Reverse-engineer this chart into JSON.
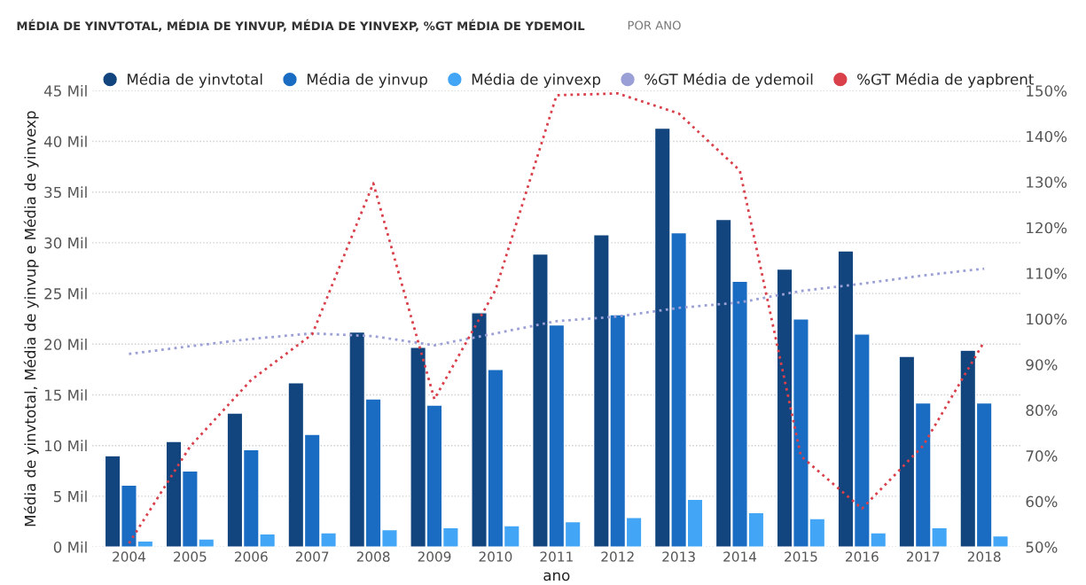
{
  "chart_data": {
    "type": "bar",
    "title": "MÉDIA DE YINVTOTAL, MÉDIA DE YINVUP, MÉDIA DE YINVEXP, %GT MÉDIA DE YDEMOIL",
    "subtitle": "POR ANO",
    "xlabel": "ano",
    "ylabel": "Média de yinvtotal, Média de yinvup e Média de yinvexp",
    "categories": [
      "2004",
      "2005",
      "2006",
      "2007",
      "2008",
      "2009",
      "2010",
      "2011",
      "2012",
      "2013",
      "2014",
      "2015",
      "2016",
      "2017",
      "2018"
    ],
    "series": [
      {
        "name": "Média de yinvtotal",
        "color": "#12457e",
        "values": [
          9.0,
          10.4,
          13.2,
          16.2,
          21.2,
          19.7,
          23.1,
          28.9,
          30.8,
          41.3,
          32.3,
          27.4,
          29.2,
          18.8,
          19.4
        ]
      },
      {
        "name": "Média de yinvup",
        "color": "#1a6cc2",
        "values": [
          6.1,
          7.5,
          9.6,
          11.1,
          14.6,
          14.0,
          17.5,
          21.9,
          22.9,
          31.0,
          26.2,
          22.5,
          21.0,
          14.2,
          14.2
        ]
      },
      {
        "name": "Média de yinvexp",
        "color": "#42a5f5",
        "values": [
          0.6,
          0.8,
          1.3,
          1.4,
          1.7,
          1.9,
          2.1,
          2.5,
          2.9,
          4.7,
          3.4,
          2.8,
          1.4,
          1.9,
          1.1
        ]
      },
      {
        "name": "%GT Média de ydemoil",
        "type": "line",
        "axis": "y2",
        "color": "#9a9fd6",
        "line_style": "dotted",
        "values": [
          92.3,
          94,
          95.6,
          96.8,
          96.2,
          94.2,
          96.8,
          99.5,
          100.5,
          102.4,
          103.6,
          106.1,
          107.7,
          109.5,
          111
        ]
      },
      {
        "name": "%GT Média de yapbrent",
        "type": "line",
        "axis": "y2",
        "color": "#d9404a",
        "line_style": "dotted",
        "values": [
          50.8,
          72,
          86.6,
          96.6,
          129.7,
          82.4,
          106.3,
          149,
          149.4,
          145,
          132.5,
          69.9,
          58.4,
          72.2,
          95
        ]
      }
    ],
    "ylim": [
      0,
      45
    ],
    "yticks": [
      {
        "value": 0,
        "label": "0 Mil"
      },
      {
        "value": 5,
        "label": "5 Mil"
      },
      {
        "value": 10,
        "label": "10 Mil"
      },
      {
        "value": 15,
        "label": "15 Mil"
      },
      {
        "value": 20,
        "label": "20 Mil"
      },
      {
        "value": 25,
        "label": "25 Mil"
      },
      {
        "value": 30,
        "label": "30 Mil"
      },
      {
        "value": 35,
        "label": "35 Mil"
      },
      {
        "value": 40,
        "label": "40 Mil"
      },
      {
        "value": 45,
        "label": "45 Mil"
      }
    ],
    "y2lim": [
      50,
      150
    ],
    "y2ticks": [
      {
        "value": 50,
        "label": "50%"
      },
      {
        "value": 60,
        "label": "60%"
      },
      {
        "value": 70,
        "label": "70%"
      },
      {
        "value": 80,
        "label": "80%"
      },
      {
        "value": 90,
        "label": "90%"
      },
      {
        "value": 100,
        "label": "100%"
      },
      {
        "value": 110,
        "label": "110%"
      },
      {
        "value": 120,
        "label": "120%"
      },
      {
        "value": 130,
        "label": "130%"
      },
      {
        "value": 140,
        "label": "140%"
      },
      {
        "value": 150,
        "label": "150%"
      }
    ],
    "grid": "y",
    "legend": "top left",
    "marker": "none"
  }
}
